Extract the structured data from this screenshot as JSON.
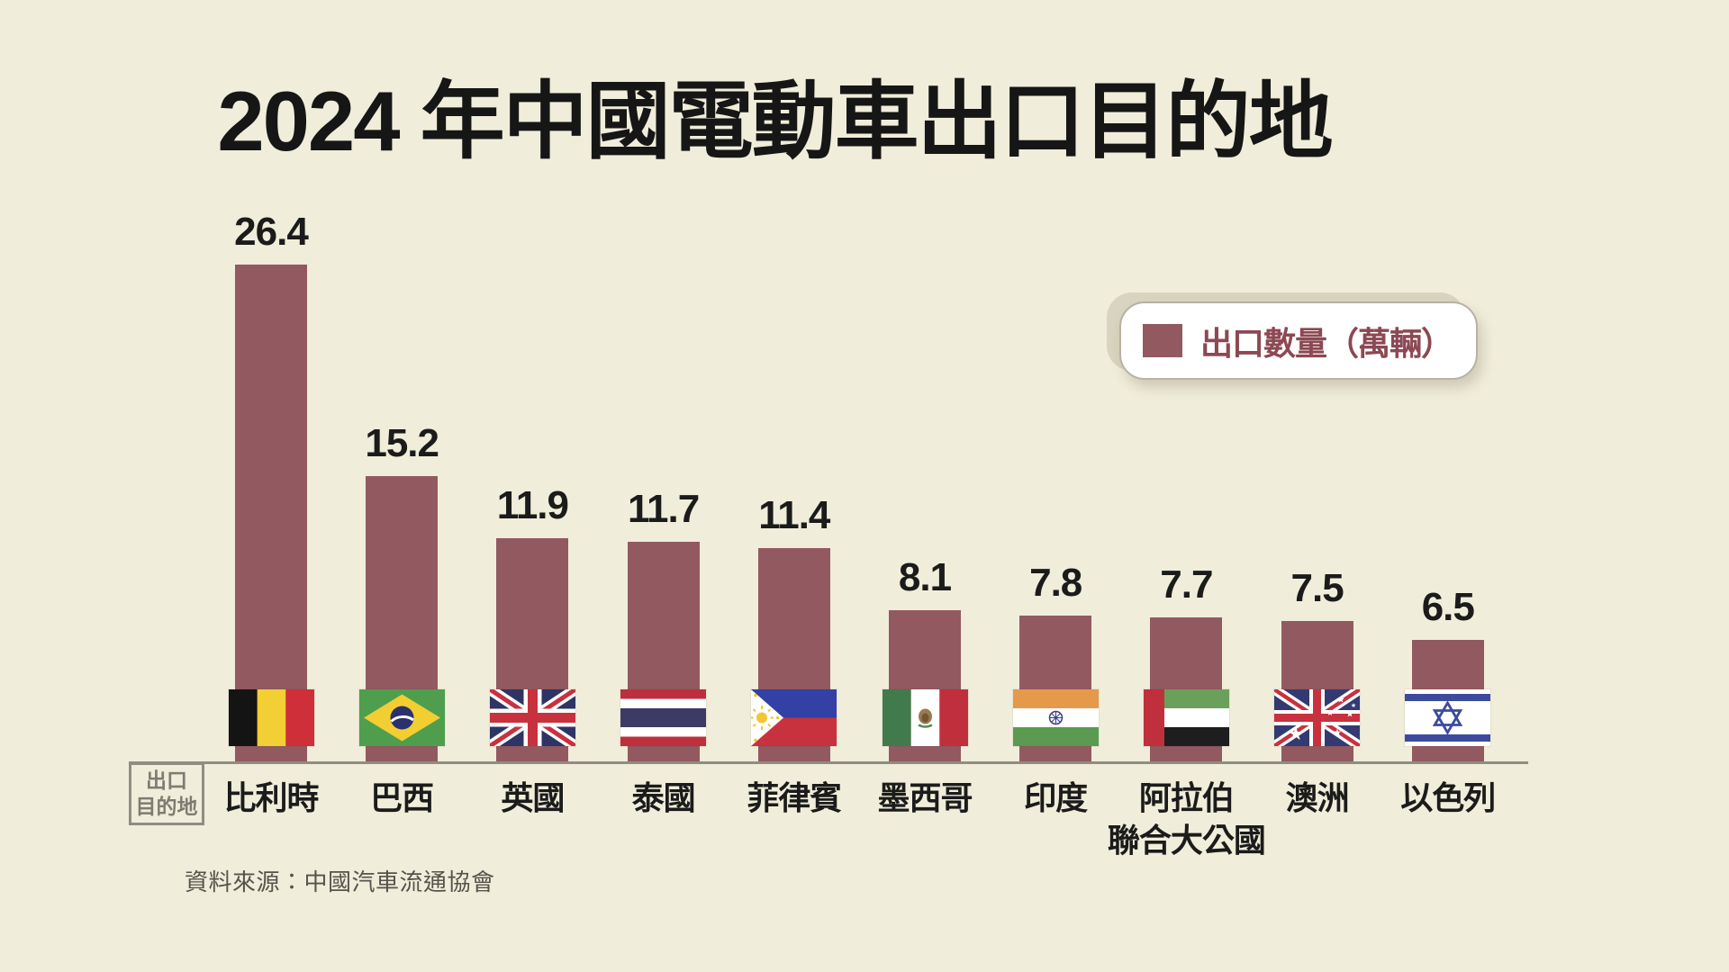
{
  "title": "2024 年中國電動車出口目的地",
  "legend": {
    "label": "出口數量（萬輛）"
  },
  "axis_origin": {
    "line1": "出口",
    "line2": "目的地"
  },
  "source_note": "資料來源：中國汽車流通協會",
  "colors": {
    "background": "#f0edda",
    "bar": "#935960",
    "legend_text": "#8c4853",
    "title_text": "#161616",
    "axis_line": "#8f8d83",
    "origin_text": "#7e7c72",
    "source_text": "#55534b",
    "legend_bg": "#ffffff"
  },
  "chart_data": {
    "type": "bar",
    "title": "2024 年中國電動車出口目的地",
    "legend_entries": [
      "出口數量（萬輛）"
    ],
    "legend_position": "top-right",
    "xlabel": "出口目的地",
    "ylabel": "出口數量（萬輛）",
    "unit": "萬輛",
    "ylim": [
      0,
      28
    ],
    "grid": false,
    "value_labels": true,
    "bar_color": "#935960",
    "categories": [
      "比利時",
      "巴西",
      "英國",
      "泰國",
      "菲律賓",
      "墨西哥",
      "印度",
      "阿拉伯聯合大公國",
      "澳洲",
      "以色列"
    ],
    "category_label_lines": [
      [
        "比利時"
      ],
      [
        "巴西"
      ],
      [
        "英國"
      ],
      [
        "泰國"
      ],
      [
        "菲律賓"
      ],
      [
        "墨西哥"
      ],
      [
        "印度"
      ],
      [
        "阿拉伯",
        "聯合大公國"
      ],
      [
        "澳洲"
      ],
      [
        "以色列"
      ]
    ],
    "flags": [
      "belgium",
      "brazil",
      "uk",
      "thailand",
      "philippines",
      "mexico",
      "india",
      "uae",
      "australia",
      "israel"
    ],
    "values": [
      26.4,
      15.2,
      11.9,
      11.7,
      11.4,
      8.1,
      7.8,
      7.7,
      7.5,
      6.5
    ]
  }
}
